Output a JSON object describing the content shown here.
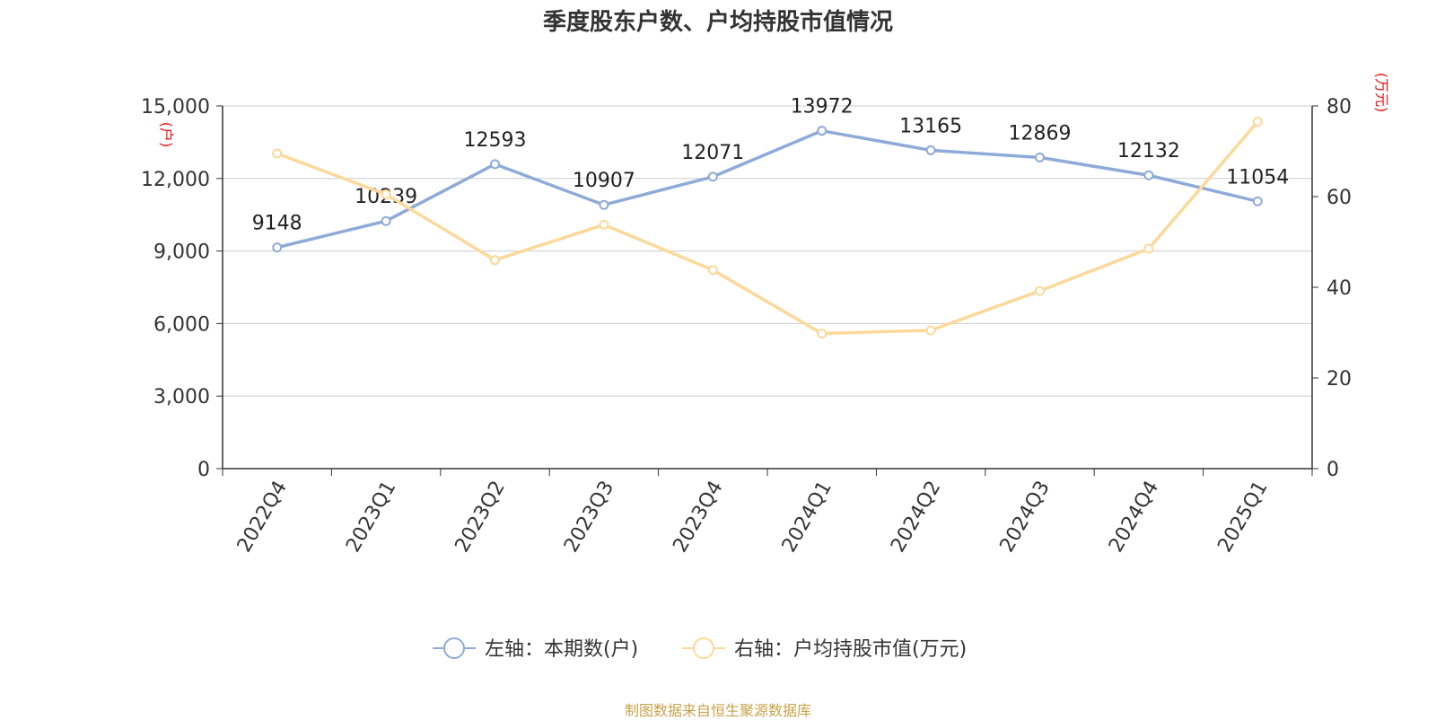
{
  "chart_data": {
    "type": "line",
    "title": "季度股东户数、户均持股市值情况",
    "categories": [
      "2022Q4",
      "2023Q1",
      "2023Q2",
      "2023Q3",
      "2023Q4",
      "2024Q1",
      "2024Q2",
      "2024Q3",
      "2024Q4",
      "2025Q1"
    ],
    "y_left": {
      "unit": "(户)",
      "ylim": [
        0,
        15000
      ],
      "ticks": [
        "0",
        "3,000",
        "6,000",
        "9,000",
        "12,000",
        "15,000"
      ]
    },
    "y_right": {
      "unit": "(万元)",
      "ylim": [
        0,
        80
      ],
      "ticks": [
        "0",
        "20",
        "40",
        "60",
        "80"
      ]
    },
    "grid": true,
    "legend_position": "bottom-center",
    "series": [
      {
        "name": "左轴：本期数(户)",
        "axis": "left",
        "color": "#8eaad8",
        "values": [
          9148,
          10239,
          12593,
          10907,
          12071,
          13972,
          13165,
          12869,
          12132,
          11054
        ],
        "labels": [
          "9148",
          "10239",
          "12593",
          "10907",
          "12071",
          "13972",
          "13165",
          "12869",
          "12132",
          "11054"
        ]
      },
      {
        "name": "右轴：户均持股市值(万元)",
        "axis": "right",
        "color": "#fcd89a",
        "values": [
          69.5,
          60.5,
          46.0,
          53.8,
          43.8,
          29.8,
          30.5,
          39.2,
          48.5,
          76.5
        ]
      }
    ]
  },
  "footer": "制图数据来自恒生聚源数据库"
}
